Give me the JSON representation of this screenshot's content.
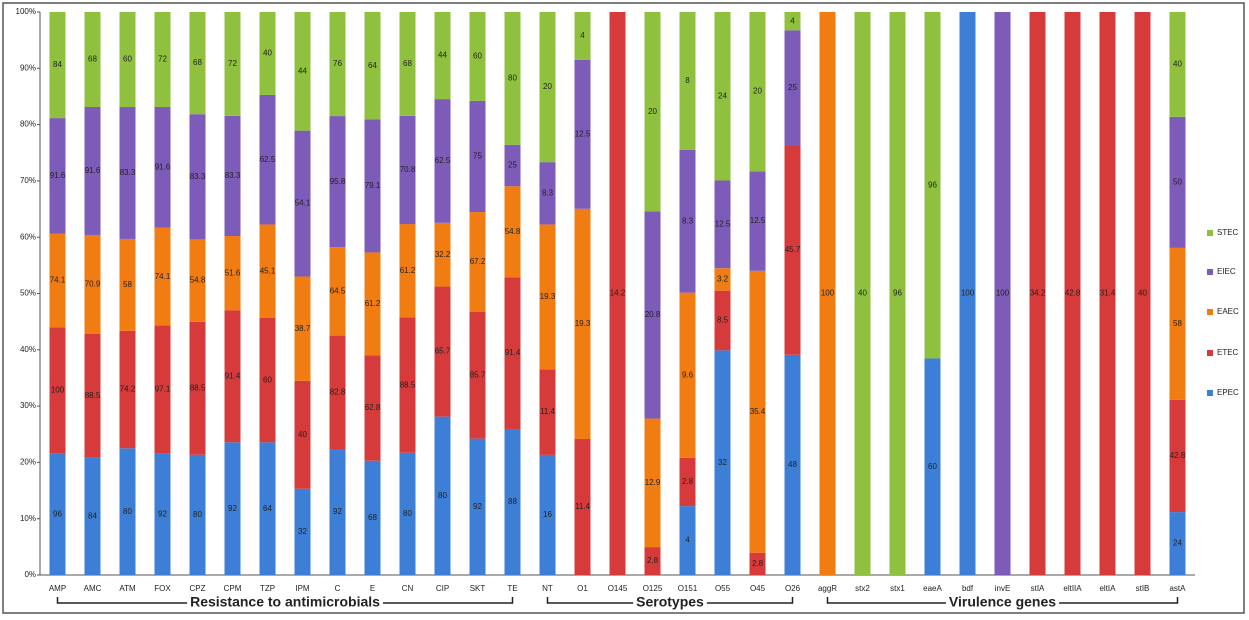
{
  "chart_data": {
    "type": "bar",
    "stacking": "percent",
    "categories": [
      "AMP",
      "AMC",
      "ATM",
      "FOX",
      "CPZ",
      "CPM",
      "TZP",
      "IPM",
      "C",
      "E",
      "CN",
      "CIP",
      "SKT",
      "TE",
      "NT",
      "O1",
      "O145",
      "O125",
      "O151",
      "O55",
      "O45",
      "O26",
      "aggR",
      "stx2",
      "stx1",
      "eaeA",
      "bdf",
      "invE",
      "stIA",
      "eltIIA",
      "eltIA",
      "stIB",
      "astA"
    ],
    "series": [
      {
        "name": "EPEC",
        "color": "#3d7fd6",
        "values": [
          96,
          84,
          80,
          92,
          80,
          92,
          64,
          32,
          92,
          68,
          80,
          80,
          92,
          88,
          16,
          0,
          0,
          0,
          4,
          32,
          0,
          48,
          0,
          0,
          0,
          60,
          100,
          0,
          0,
          0,
          0,
          0,
          24
        ]
      },
      {
        "name": "ETEC",
        "color": "#d73a3a",
        "values": [
          100,
          88.5,
          74.2,
          97.1,
          88.5,
          91.4,
          60,
          40,
          82.8,
          62.8,
          88.5,
          65.7,
          85.7,
          91.4,
          11.4,
          11.4,
          14.2,
          2.8,
          2.8,
          8.5,
          2.8,
          45.7,
          0,
          0,
          0,
          0,
          0,
          0,
          34.2,
          42.8,
          31.4,
          40,
          42.8
        ]
      },
      {
        "name": "EAEC",
        "color": "#f07c12",
        "values": [
          74.1,
          70.9,
          58,
          74.1,
          54.8,
          51.6,
          45.1,
          38.7,
          64.5,
          61.2,
          61.2,
          32.2,
          67.2,
          54.8,
          19.3,
          19.3,
          0,
          12.9,
          9.6,
          3.2,
          35.4,
          0,
          100,
          0,
          0,
          0,
          0,
          0,
          0,
          0,
          0,
          0,
          58
        ]
      },
      {
        "name": "EIEC",
        "color": "#7d5bb8",
        "values": [
          91.6,
          91.6,
          83.3,
          91.6,
          83.3,
          83.3,
          62.5,
          54.1,
          95.8,
          79.1,
          70.8,
          62.5,
          75,
          25,
          8.3,
          12.5,
          0,
          20.8,
          8.3,
          12.5,
          12.5,
          25,
          0,
          0,
          0,
          0,
          0,
          100,
          0,
          0,
          0,
          0,
          50
        ]
      },
      {
        "name": "STEC",
        "color": "#8fc13f",
        "values": [
          84,
          68,
          60,
          72,
          68,
          72,
          40,
          44,
          76,
          64,
          68,
          44,
          60,
          80,
          20,
          4,
          0,
          20,
          8,
          24,
          20,
          4,
          0,
          40,
          96,
          96,
          0,
          0,
          0,
          0,
          0,
          0,
          40
        ]
      }
    ],
    "groups": [
      {
        "label": "Resistance to antimicrobials",
        "first": "AMP",
        "last": "TE"
      },
      {
        "label": "Serotypes",
        "first": "NT",
        "last": "O26"
      },
      {
        "label": "Virulence genes",
        "first": "aggR",
        "last": "astA"
      }
    ],
    "ylim": [
      0,
      100
    ],
    "yticks": [
      {
        "value": 0,
        "label": "0%"
      },
      {
        "value": 10,
        "label": "10%"
      },
      {
        "value": 20,
        "label": "20%"
      },
      {
        "value": 30,
        "label": "30%"
      },
      {
        "value": 40,
        "label": "40%"
      },
      {
        "value": 50,
        "label": "50%"
      },
      {
        "value": 60,
        "label": "60%"
      },
      {
        "value": 70,
        "label": "70%"
      },
      {
        "value": 80,
        "label": "80%"
      },
      {
        "value": 90,
        "label": "90%"
      },
      {
        "value": 100,
        "label": "100%"
      }
    ],
    "legend": "right"
  }
}
